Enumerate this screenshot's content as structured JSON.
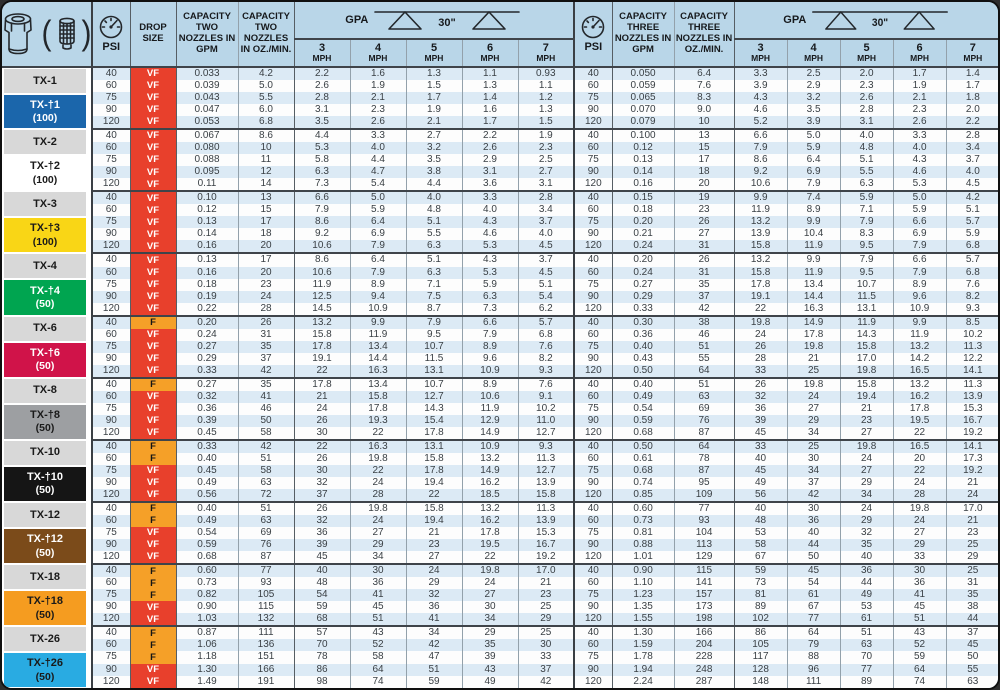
{
  "header": {
    "psi_label": "PSI",
    "drop_size_label": "DROP SIZE",
    "cap2_gpm_label": "CAPACITY TWO NOZZLES IN GPM",
    "cap2_oz_label": "CAPACITY TWO NOZZLES IN OZ./MIN.",
    "cap3_gpm_label": "CAPACITY THREE NOZZLES IN GPM",
    "cap3_oz_label": "CAPACITY THREE NOZZLES IN OZ./MIN.",
    "gpa_label": "GPA",
    "spacing_label": "30\"",
    "mph_cols": [
      "3",
      "4",
      "5",
      "6",
      "7"
    ],
    "mph_unit": "MPH",
    "icons": [
      "nozzle-tip-icon",
      "strainer-icon",
      "pressure-gauge-icon",
      "spray-pattern-icon"
    ]
  },
  "colors": {
    "frame_bg": "#b9d6e8",
    "row_blue": "#dceaf5",
    "row_white": "#fdfdfd",
    "drop_vf_bg": "#e8402c",
    "drop_f_bg": "#f5a028",
    "chip_gray": "#d8d8d8",
    "grid_dark": "#3a3f44"
  },
  "drop_size_codes": [
    "VF",
    "F"
  ],
  "groups": [
    {
      "name": "TX-1",
      "variant": "TX-†1",
      "rate": "(100)",
      "chip_bg": "#1b66ab",
      "chip_fg": "#ffffff",
      "rows": [
        [
          "40",
          "VF",
          "0.033",
          "4.2",
          "2.2",
          "1.6",
          "1.3",
          "1.1",
          "0.93",
          "40",
          "0.050",
          "6.4",
          "3.3",
          "2.5",
          "2.0",
          "1.7",
          "1.4"
        ],
        [
          "60",
          "VF",
          "0.039",
          "5.0",
          "2.6",
          "1.9",
          "1.5",
          "1.3",
          "1.1",
          "60",
          "0.059",
          "7.6",
          "3.9",
          "2.9",
          "2.3",
          "1.9",
          "1.7"
        ],
        [
          "75",
          "VF",
          "0.043",
          "5.5",
          "2.8",
          "2.1",
          "1.7",
          "1.4",
          "1.2",
          "75",
          "0.065",
          "8.3",
          "4.3",
          "3.2",
          "2.6",
          "2.1",
          "1.8"
        ],
        [
          "90",
          "VF",
          "0.047",
          "6.0",
          "3.1",
          "2.3",
          "1.9",
          "1.6",
          "1.3",
          "90",
          "0.070",
          "9.0",
          "4.6",
          "3.5",
          "2.8",
          "2.3",
          "2.0"
        ],
        [
          "120",
          "VF",
          "0.053",
          "6.8",
          "3.5",
          "2.6",
          "2.1",
          "1.7",
          "1.5",
          "120",
          "0.079",
          "10",
          "5.2",
          "3.9",
          "3.1",
          "2.6",
          "2.2"
        ]
      ]
    },
    {
      "name": "TX-2",
      "variant": "TX-†2",
      "rate": "(100)",
      "chip_bg": "#ffffff",
      "chip_fg": "#1a1a1a",
      "rows": [
        [
          "40",
          "VF",
          "0.067",
          "8.6",
          "4.4",
          "3.3",
          "2.7",
          "2.2",
          "1.9",
          "40",
          "0.100",
          "13",
          "6.6",
          "5.0",
          "4.0",
          "3.3",
          "2.8"
        ],
        [
          "60",
          "VF",
          "0.080",
          "10",
          "5.3",
          "4.0",
          "3.2",
          "2.6",
          "2.3",
          "60",
          "0.12",
          "15",
          "7.9",
          "5.9",
          "4.8",
          "4.0",
          "3.4"
        ],
        [
          "75",
          "VF",
          "0.088",
          "11",
          "5.8",
          "4.4",
          "3.5",
          "2.9",
          "2.5",
          "75",
          "0.13",
          "17",
          "8.6",
          "6.4",
          "5.1",
          "4.3",
          "3.7"
        ],
        [
          "90",
          "VF",
          "0.095",
          "12",
          "6.3",
          "4.7",
          "3.8",
          "3.1",
          "2.7",
          "90",
          "0.14",
          "18",
          "9.2",
          "6.9",
          "5.5",
          "4.6",
          "4.0"
        ],
        [
          "120",
          "VF",
          "0.11",
          "14",
          "7.3",
          "5.4",
          "4.4",
          "3.6",
          "3.1",
          "120",
          "0.16",
          "20",
          "10.6",
          "7.9",
          "6.3",
          "5.3",
          "4.5"
        ]
      ]
    },
    {
      "name": "TX-3",
      "variant": "TX-†3",
      "rate": "(100)",
      "chip_bg": "#f9d616",
      "chip_fg": "#1a1a1a",
      "rows": [
        [
          "40",
          "VF",
          "0.10",
          "13",
          "6.6",
          "5.0",
          "4.0",
          "3.3",
          "2.8",
          "40",
          "0.15",
          "19",
          "9.9",
          "7.4",
          "5.9",
          "5.0",
          "4.2"
        ],
        [
          "60",
          "VF",
          "0.12",
          "15",
          "7.9",
          "5.9",
          "4.8",
          "4.0",
          "3.4",
          "60",
          "0.18",
          "23",
          "11.9",
          "8.9",
          "7.1",
          "5.9",
          "5.1"
        ],
        [
          "75",
          "VF",
          "0.13",
          "17",
          "8.6",
          "6.4",
          "5.1",
          "4.3",
          "3.7",
          "75",
          "0.20",
          "26",
          "13.2",
          "9.9",
          "7.9",
          "6.6",
          "5.7"
        ],
        [
          "90",
          "VF",
          "0.14",
          "18",
          "9.2",
          "6.9",
          "5.5",
          "4.6",
          "4.0",
          "90",
          "0.21",
          "27",
          "13.9",
          "10.4",
          "8.3",
          "6.9",
          "5.9"
        ],
        [
          "120",
          "VF",
          "0.16",
          "20",
          "10.6",
          "7.9",
          "6.3",
          "5.3",
          "4.5",
          "120",
          "0.24",
          "31",
          "15.8",
          "11.9",
          "9.5",
          "7.9",
          "6.8"
        ]
      ]
    },
    {
      "name": "TX-4",
      "variant": "TX-†4",
      "rate": "(50)",
      "chip_bg": "#00a550",
      "chip_fg": "#ffffff",
      "rows": [
        [
          "40",
          "VF",
          "0.13",
          "17",
          "8.6",
          "6.4",
          "5.1",
          "4.3",
          "3.7",
          "40",
          "0.20",
          "26",
          "13.2",
          "9.9",
          "7.9",
          "6.6",
          "5.7"
        ],
        [
          "60",
          "VF",
          "0.16",
          "20",
          "10.6",
          "7.9",
          "6.3",
          "5.3",
          "4.5",
          "60",
          "0.24",
          "31",
          "15.8",
          "11.9",
          "9.5",
          "7.9",
          "6.8"
        ],
        [
          "75",
          "VF",
          "0.18",
          "23",
          "11.9",
          "8.9",
          "7.1",
          "5.9",
          "5.1",
          "75",
          "0.27",
          "35",
          "17.8",
          "13.4",
          "10.7",
          "8.9",
          "7.6"
        ],
        [
          "90",
          "VF",
          "0.19",
          "24",
          "12.5",
          "9.4",
          "7.5",
          "6.3",
          "5.4",
          "90",
          "0.29",
          "37",
          "19.1",
          "14.4",
          "11.5",
          "9.6",
          "8.2"
        ],
        [
          "120",
          "VF",
          "0.22",
          "28",
          "14.5",
          "10.9",
          "8.7",
          "7.3",
          "6.2",
          "120",
          "0.33",
          "42",
          "22",
          "16.3",
          "13.1",
          "10.9",
          "9.3"
        ]
      ]
    },
    {
      "name": "TX-6",
      "variant": "TX-†6",
      "rate": "(50)",
      "chip_bg": "#d01349",
      "chip_fg": "#ffffff",
      "rows": [
        [
          "40",
          "F",
          "0.20",
          "26",
          "13.2",
          "9.9",
          "7.9",
          "6.6",
          "5.7",
          "40",
          "0.30",
          "38",
          "19.8",
          "14.9",
          "11.9",
          "9.9",
          "8.5"
        ],
        [
          "60",
          "VF",
          "0.24",
          "31",
          "15.8",
          "11.9",
          "9.5",
          "7.9",
          "6.8",
          "60",
          "0.36",
          "46",
          "24",
          "17.8",
          "14.3",
          "11.9",
          "10.2"
        ],
        [
          "75",
          "VF",
          "0.27",
          "35",
          "17.8",
          "13.4",
          "10.7",
          "8.9",
          "7.6",
          "75",
          "0.40",
          "51",
          "26",
          "19.8",
          "15.8",
          "13.2",
          "11.3"
        ],
        [
          "90",
          "VF",
          "0.29",
          "37",
          "19.1",
          "14.4",
          "11.5",
          "9.6",
          "8.2",
          "90",
          "0.43",
          "55",
          "28",
          "21",
          "17.0",
          "14.2",
          "12.2"
        ],
        [
          "120",
          "VF",
          "0.33",
          "42",
          "22",
          "16.3",
          "13.1",
          "10.9",
          "9.3",
          "120",
          "0.50",
          "64",
          "33",
          "25",
          "19.8",
          "16.5",
          "14.1"
        ]
      ]
    },
    {
      "name": "TX-8",
      "variant": "TX-†8",
      "rate": "(50)",
      "chip_bg": "#9d9fa2",
      "chip_fg": "#1a1a1a",
      "rows": [
        [
          "40",
          "F",
          "0.27",
          "35",
          "17.8",
          "13.4",
          "10.7",
          "8.9",
          "7.6",
          "40",
          "0.40",
          "51",
          "26",
          "19.8",
          "15.8",
          "13.2",
          "11.3"
        ],
        [
          "60",
          "VF",
          "0.32",
          "41",
          "21",
          "15.8",
          "12.7",
          "10.6",
          "9.1",
          "60",
          "0.49",
          "63",
          "32",
          "24",
          "19.4",
          "16.2",
          "13.9"
        ],
        [
          "75",
          "VF",
          "0.36",
          "46",
          "24",
          "17.8",
          "14.3",
          "11.9",
          "10.2",
          "75",
          "0.54",
          "69",
          "36",
          "27",
          "21",
          "17.8",
          "15.3"
        ],
        [
          "90",
          "VF",
          "0.39",
          "50",
          "26",
          "19.3",
          "15.4",
          "12.9",
          "11.0",
          "90",
          "0.59",
          "76",
          "39",
          "29",
          "23",
          "19.5",
          "16.7"
        ],
        [
          "120",
          "VF",
          "0.45",
          "58",
          "30",
          "22",
          "17.8",
          "14.9",
          "12.7",
          "120",
          "0.68",
          "87",
          "45",
          "34",
          "27",
          "22",
          "19.2"
        ]
      ]
    },
    {
      "name": "TX-10",
      "variant": "TX-†10",
      "rate": "(50)",
      "chip_bg": "#151515",
      "chip_fg": "#ffffff",
      "rows": [
        [
          "40",
          "F",
          "0.33",
          "42",
          "22",
          "16.3",
          "13.1",
          "10.9",
          "9.3",
          "40",
          "0.50",
          "64",
          "33",
          "25",
          "19.8",
          "16.5",
          "14.1"
        ],
        [
          "60",
          "F",
          "0.40",
          "51",
          "26",
          "19.8",
          "15.8",
          "13.2",
          "11.3",
          "60",
          "0.61",
          "78",
          "40",
          "30",
          "24",
          "20",
          "17.3"
        ],
        [
          "75",
          "VF",
          "0.45",
          "58",
          "30",
          "22",
          "17.8",
          "14.9",
          "12.7",
          "75",
          "0.68",
          "87",
          "45",
          "34",
          "27",
          "22",
          "19.2"
        ],
        [
          "90",
          "VF",
          "0.49",
          "63",
          "32",
          "24",
          "19.4",
          "16.2",
          "13.9",
          "90",
          "0.74",
          "95",
          "49",
          "37",
          "29",
          "24",
          "21"
        ],
        [
          "120",
          "VF",
          "0.56",
          "72",
          "37",
          "28",
          "22",
          "18.5",
          "15.8",
          "120",
          "0.85",
          "109",
          "56",
          "42",
          "34",
          "28",
          "24"
        ]
      ]
    },
    {
      "name": "TX-12",
      "variant": "TX-†12",
      "rate": "(50)",
      "chip_bg": "#7b4b1a",
      "chip_fg": "#ffffff",
      "rows": [
        [
          "40",
          "F",
          "0.40",
          "51",
          "26",
          "19.8",
          "15.8",
          "13.2",
          "11.3",
          "40",
          "0.60",
          "77",
          "40",
          "30",
          "24",
          "19.8",
          "17.0"
        ],
        [
          "60",
          "F",
          "0.49",
          "63",
          "32",
          "24",
          "19.4",
          "16.2",
          "13.9",
          "60",
          "0.73",
          "93",
          "48",
          "36",
          "29",
          "24",
          "21"
        ],
        [
          "75",
          "VF",
          "0.54",
          "69",
          "36",
          "27",
          "21",
          "17.8",
          "15.3",
          "75",
          "0.81",
          "104",
          "53",
          "40",
          "32",
          "27",
          "23"
        ],
        [
          "90",
          "VF",
          "0.59",
          "76",
          "39",
          "29",
          "23",
          "19.5",
          "16.7",
          "90",
          "0.88",
          "113",
          "58",
          "44",
          "35",
          "29",
          "25"
        ],
        [
          "120",
          "VF",
          "0.68",
          "87",
          "45",
          "34",
          "27",
          "22",
          "19.2",
          "120",
          "1.01",
          "129",
          "67",
          "50",
          "40",
          "33",
          "29"
        ]
      ]
    },
    {
      "name": "TX-18",
      "variant": "TX-†18",
      "rate": "(50)",
      "chip_bg": "#f59c20",
      "chip_fg": "#1a1a1a",
      "rows": [
        [
          "40",
          "F",
          "0.60",
          "77",
          "40",
          "30",
          "24",
          "19.8",
          "17.0",
          "40",
          "0.90",
          "115",
          "59",
          "45",
          "36",
          "30",
          "25"
        ],
        [
          "60",
          "F",
          "0.73",
          "93",
          "48",
          "36",
          "29",
          "24",
          "21",
          "60",
          "1.10",
          "141",
          "73",
          "54",
          "44",
          "36",
          "31"
        ],
        [
          "75",
          "F",
          "0.82",
          "105",
          "54",
          "41",
          "32",
          "27",
          "23",
          "75",
          "1.23",
          "157",
          "81",
          "61",
          "49",
          "41",
          "35"
        ],
        [
          "90",
          "VF",
          "0.90",
          "115",
          "59",
          "45",
          "36",
          "30",
          "25",
          "90",
          "1.35",
          "173",
          "89",
          "67",
          "53",
          "45",
          "38"
        ],
        [
          "120",
          "VF",
          "1.03",
          "132",
          "68",
          "51",
          "41",
          "34",
          "29",
          "120",
          "1.55",
          "198",
          "102",
          "77",
          "61",
          "51",
          "44"
        ]
      ]
    },
    {
      "name": "TX-26",
      "variant": "TX-†26",
      "rate": "(50)",
      "chip_bg": "#29abe2",
      "chip_fg": "#1a1a1a",
      "rows": [
        [
          "40",
          "F",
          "0.87",
          "111",
          "57",
          "43",
          "34",
          "29",
          "25",
          "40",
          "1.30",
          "166",
          "86",
          "64",
          "51",
          "43",
          "37"
        ],
        [
          "60",
          "F",
          "1.06",
          "136",
          "70",
          "52",
          "42",
          "35",
          "30",
          "60",
          "1.59",
          "204",
          "105",
          "79",
          "63",
          "52",
          "45"
        ],
        [
          "75",
          "F",
          "1.18",
          "151",
          "78",
          "58",
          "47",
          "39",
          "33",
          "75",
          "1.78",
          "228",
          "117",
          "88",
          "70",
          "59",
          "50"
        ],
        [
          "90",
          "VF",
          "1.30",
          "166",
          "86",
          "64",
          "51",
          "43",
          "37",
          "90",
          "1.94",
          "248",
          "128",
          "96",
          "77",
          "64",
          "55"
        ],
        [
          "120",
          "VF",
          "1.49",
          "191",
          "98",
          "74",
          "59",
          "49",
          "42",
          "120",
          "2.24",
          "287",
          "148",
          "111",
          "89",
          "74",
          "63"
        ]
      ]
    }
  ]
}
